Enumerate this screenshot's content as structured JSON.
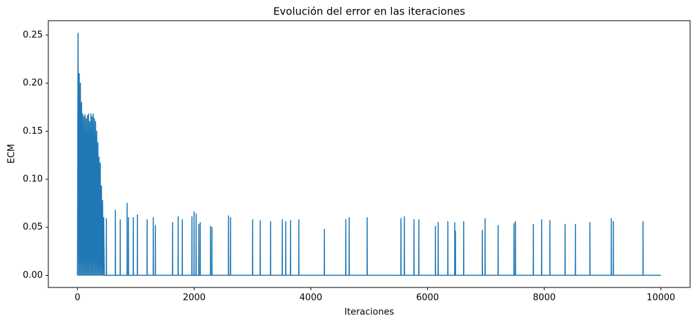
{
  "chart_data": {
    "type": "line",
    "title": "Evolución del error en las iteraciones",
    "xlabel": "Iteraciones",
    "ylabel": "ECM",
    "x": [
      0,
      10,
      20,
      30,
      40,
      50,
      60,
      70,
      80,
      90,
      100,
      110,
      120,
      130,
      140,
      150,
      160,
      170,
      180,
      190,
      200,
      210,
      220,
      230,
      240,
      250,
      260,
      270,
      280,
      290,
      300,
      310,
      320,
      330,
      340,
      350,
      360,
      370,
      380,
      390,
      400,
      410,
      420,
      430,
      440,
      450,
      460,
      494,
      496,
      498,
      648,
      650,
      652,
      731,
      733,
      735,
      849,
      851,
      853,
      873,
      875,
      877,
      955,
      957,
      959,
      1026,
      1028,
      1030,
      1192,
      1194,
      1196,
      1298,
      1300,
      1302,
      1334,
      1336,
      1338,
      1629,
      1631,
      1633,
      1724,
      1726,
      1728,
      1795,
      1797,
      1799,
      1960,
      1962,
      1964,
      1996,
      1998,
      2000,
      2031,
      2033,
      2035,
      2078,
      2080,
      2082,
      2102,
      2104,
      2106,
      2279,
      2281,
      2283,
      2303,
      2305,
      2307,
      2587,
      2589,
      2591,
      2622,
      2624,
      2626,
      3000,
      3002,
      3004,
      3130,
      3132,
      3134,
      3308,
      3310,
      3312,
      3509,
      3511,
      3513,
      3568,
      3570,
      3572,
      3650,
      3652,
      3654,
      3792,
      3794,
      3796,
      4230,
      4232,
      4234,
      4596,
      4598,
      4600,
      4655,
      4657,
      4659,
      4963,
      4965,
      4967,
      5542,
      5544,
      5546,
      5601,
      5603,
      5605,
      5766,
      5768,
      5770,
      5849,
      5851,
      5853,
      6133,
      6135,
      6137,
      6180,
      6182,
      6184,
      6346,
      6348,
      6350,
      6464,
      6466,
      6468,
      6476,
      6478,
      6480,
      6617,
      6619,
      6621,
      6937,
      6939,
      6941,
      6984,
      6986,
      6988,
      7208,
      7210,
      7212,
      7480,
      7482,
      7484,
      7504,
      7506,
      7508,
      7811,
      7813,
      7815,
      7953,
      7955,
      7957,
      8095,
      8097,
      8099,
      8355,
      8357,
      8359,
      8532,
      8534,
      8536,
      8781,
      8783,
      8785,
      9147,
      9149,
      9151,
      9182,
      9184,
      9186,
      9691,
      9693,
      9695,
      9999
    ],
    "values": [
      0,
      0.252,
      0,
      0.21,
      0,
      0.2,
      0,
      0.18,
      0,
      0.168,
      0,
      0.165,
      0,
      0.167,
      0,
      0.163,
      0,
      0.166,
      0,
      0.168,
      0,
      0.16,
      0,
      0.168,
      0,
      0.165,
      0,
      0.168,
      0,
      0.163,
      0,
      0.16,
      0,
      0.15,
      0,
      0.138,
      0,
      0.123,
      0,
      0.117,
      0,
      0.093,
      0,
      0.078,
      0,
      0.06,
      0,
      0,
      0.059,
      0,
      0,
      0.068,
      0,
      0,
      0.058,
      0,
      0,
      0.075,
      0,
      0,
      0.06,
      0,
      0,
      0.06,
      0,
      0,
      0.063,
      0,
      0,
      0.058,
      0,
      0,
      0.06,
      0,
      0,
      0.052,
      0,
      0,
      0.055,
      0,
      0,
      0.061,
      0,
      0,
      0.058,
      0,
      0,
      0.061,
      0,
      0,
      0.066,
      0,
      0,
      0.064,
      0,
      0,
      0.053,
      0,
      0,
      0.055,
      0,
      0,
      0.051,
      0,
      0,
      0.05,
      0,
      0,
      0.062,
      0,
      0,
      0.06,
      0,
      0,
      0.058,
      0,
      0,
      0.057,
      0,
      0,
      0.056,
      0,
      0,
      0.058,
      0,
      0,
      0.056,
      0,
      0,
      0.057,
      0,
      0,
      0.058,
      0,
      0,
      0.048,
      0,
      0,
      0.058,
      0,
      0,
      0.06,
      0,
      0,
      0.06,
      0,
      0,
      0.059,
      0,
      0,
      0.061,
      0,
      0,
      0.058,
      0,
      0,
      0.058,
      0,
      0,
      0.051,
      0,
      0,
      0.055,
      0,
      0,
      0.056,
      0,
      0,
      0.055,
      0,
      0,
      0.046,
      0,
      0,
      0.056,
      0,
      0,
      0.047,
      0,
      0,
      0.059,
      0,
      0,
      0.052,
      0,
      0,
      0.054,
      0,
      0,
      0.056,
      0,
      0,
      0.053,
      0,
      0,
      0.058,
      0,
      0,
      0.057,
      0,
      0,
      0.053,
      0,
      0,
      0.053,
      0,
      0,
      0.055,
      0,
      0,
      0.059,
      0,
      0,
      0.056,
      0,
      0,
      0.056,
      0,
      0
    ],
    "color": "#1f77b4",
    "xlim": [
      -500,
      10500
    ],
    "xticks": [
      0,
      2000,
      4000,
      6000,
      8000,
      10000
    ],
    "ylim": [
      -0.0126,
      0.265
    ],
    "yticks": [
      {
        "value": 0,
        "label": "0.00"
      },
      0.05,
      {
        "value": 0.1,
        "label": "0.10"
      },
      0.15,
      {
        "value": 0.2,
        "label": "0.20"
      },
      0.25
    ],
    "grid": false
  }
}
